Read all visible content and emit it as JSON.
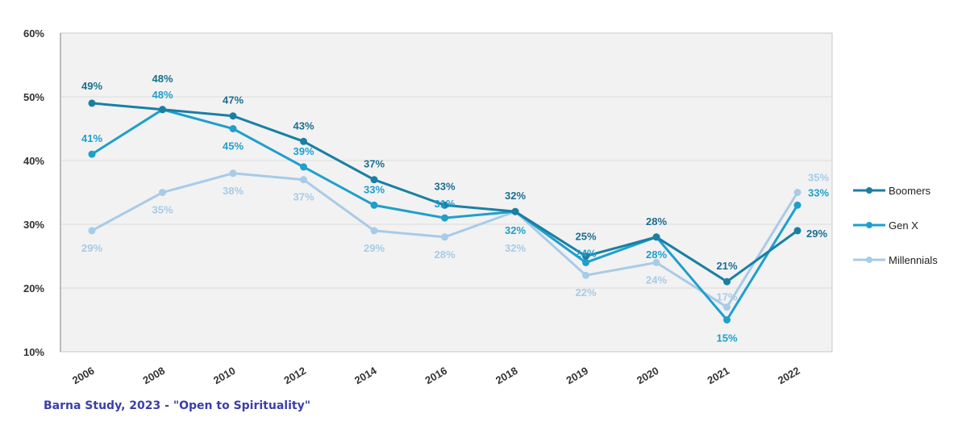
{
  "chart_data": {
    "type": "line",
    "title": "",
    "xlabel": "",
    "ylabel": "",
    "categories": [
      "2006",
      "2008",
      "2010",
      "2012",
      "2014",
      "2016",
      "2018",
      "2019",
      "2020",
      "2021",
      "2022"
    ],
    "ylim": [
      10,
      60
    ],
    "yticks": [
      "10%",
      "20%",
      "30%",
      "40%",
      "50%",
      "60%"
    ],
    "ytick_values": [
      10,
      20,
      30,
      40,
      50,
      60
    ],
    "grid": true,
    "legend_position": "right",
    "series": [
      {
        "name": "Boomers",
        "color": "#1a7fa3",
        "values": [
          49,
          48,
          47,
          43,
          37,
          33,
          32,
          25,
          28,
          21,
          29
        ],
        "labels": [
          "49%",
          "48%",
          "47%",
          "43%",
          "37%",
          "33%",
          "32%",
          "25%",
          "28%",
          "21%",
          "29%"
        ]
      },
      {
        "name": "Gen X",
        "color": "#1f9fcc",
        "values": [
          41,
          48,
          45,
          39,
          33,
          31,
          32,
          24,
          28,
          15,
          33
        ],
        "labels": [
          "41%",
          "48%",
          "45%",
          "39%",
          "33%",
          "31%",
          "32%",
          "24%",
          "28%",
          "15%",
          "33%"
        ]
      },
      {
        "name": "Millennials",
        "color": "#a8cbe7",
        "values": [
          29,
          35,
          38,
          37,
          29,
          28,
          32,
          22,
          24,
          17,
          35
        ],
        "labels": [
          "29%",
          "35%",
          "38%",
          "37%",
          "29%",
          "28%",
          "32%",
          "22%",
          "24%",
          "17%",
          "35%"
        ]
      }
    ]
  },
  "footnote": "Barna Study, 2023 - \"Open to Spirituality\""
}
